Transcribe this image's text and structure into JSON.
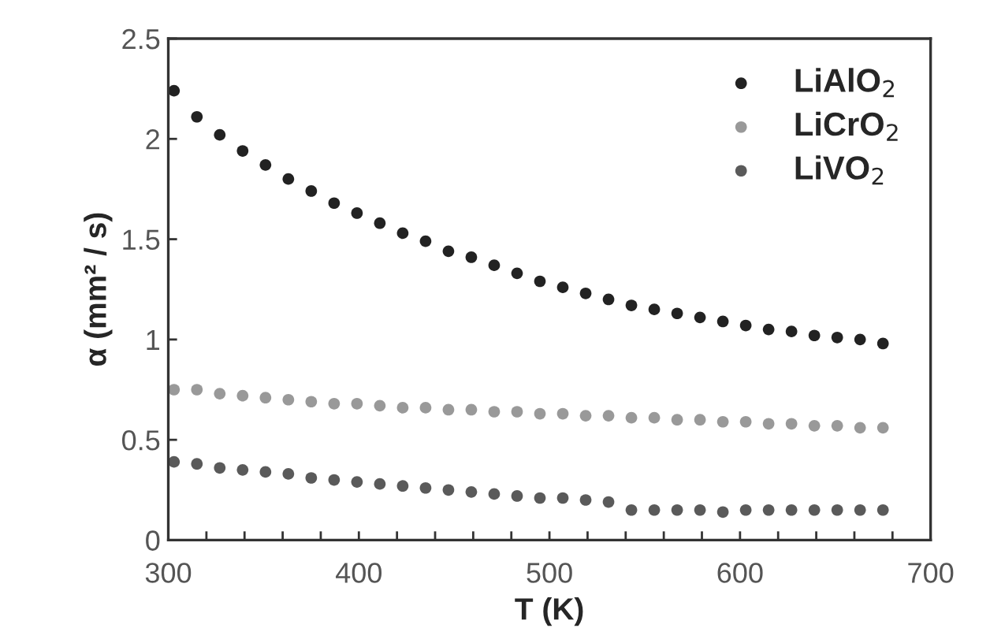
{
  "chart_data": {
    "type": "scatter",
    "xlabel": "T (K)",
    "ylabel": "α (mm² / s)",
    "x": [
      303,
      315,
      327,
      339,
      351,
      363,
      375,
      387,
      399,
      411,
      423,
      435,
      447,
      459,
      471,
      483,
      495,
      507,
      519,
      531,
      543,
      555,
      567,
      579,
      591,
      603,
      615,
      627,
      639,
      651,
      663,
      675
    ],
    "series": [
      {
        "name": "LiAlO$_{2}$",
        "color": "#222222",
        "values": [
          2.24,
          2.11,
          2.02,
          1.94,
          1.87,
          1.8,
          1.74,
          1.68,
          1.63,
          1.58,
          1.53,
          1.49,
          1.44,
          1.41,
          1.37,
          1.33,
          1.29,
          1.26,
          1.23,
          1.2,
          1.17,
          1.15,
          1.13,
          1.11,
          1.09,
          1.07,
          1.05,
          1.04,
          1.02,
          1.01,
          1.0,
          0.98
        ]
      },
      {
        "name": "LiCrO$_{2}$",
        "color": "#999999",
        "values": [
          0.75,
          0.75,
          0.73,
          0.72,
          0.71,
          0.7,
          0.69,
          0.68,
          0.68,
          0.67,
          0.66,
          0.66,
          0.65,
          0.65,
          0.64,
          0.64,
          0.63,
          0.63,
          0.62,
          0.62,
          0.61,
          0.61,
          0.6,
          0.6,
          0.59,
          0.59,
          0.58,
          0.58,
          0.57,
          0.57,
          0.56,
          0.56
        ]
      },
      {
        "name": "LiVO$_{2}$",
        "color": "#5a5a5a",
        "values": [
          0.39,
          0.38,
          0.36,
          0.35,
          0.34,
          0.33,
          0.31,
          0.3,
          0.29,
          0.28,
          0.27,
          0.26,
          0.25,
          0.24,
          0.23,
          0.22,
          0.21,
          0.21,
          0.2,
          0.19,
          0.15,
          0.15,
          0.15,
          0.15,
          0.14,
          0.15,
          0.15,
          0.15,
          0.15,
          0.15,
          0.15,
          0.15
        ]
      }
    ],
    "xlim": [
      300,
      700
    ],
    "xticks": [
      300,
      {
        "value": 320,
        "label": null
      },
      {
        "value": 340,
        "label": null
      },
      {
        "value": 360,
        "label": null
      },
      {
        "value": 380,
        "label": null
      },
      400,
      {
        "value": 420,
        "label": null
      },
      {
        "value": 440,
        "label": null
      },
      {
        "value": 460,
        "label": null
      },
      {
        "value": 480,
        "label": null
      },
      500,
      {
        "value": 520,
        "label": null
      },
      {
        "value": 540,
        "label": null
      },
      {
        "value": 560,
        "label": null
      },
      {
        "value": 580,
        "label": null
      },
      600,
      {
        "value": 620,
        "label": null
      },
      {
        "value": 640,
        "label": null
      },
      {
        "value": 660,
        "label": null
      },
      {
        "value": 680,
        "label": null
      },
      700
    ],
    "ylim": [
      0,
      2.5
    ],
    "yticks": [
      0,
      0.5,
      1,
      1.5,
      2,
      2.5
    ],
    "marker": "circle",
    "grid": false,
    "legend": "top right"
  }
}
